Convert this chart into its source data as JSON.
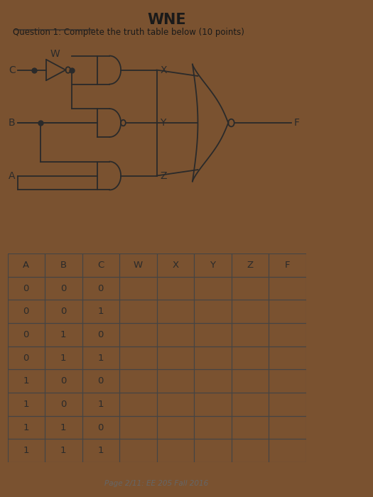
{
  "title": "WNE",
  "question_prefix": "Question 1: ",
  "question_suffix": "Complete the truth table below (10 points)",
  "page_footer": "Page 2/11: EE 205 Fall 2016",
  "paper_bg": "#f2f0ed",
  "wood_bg": "#8B5E3C",
  "table_headers": [
    "A",
    "B",
    "C",
    "W",
    "X",
    "Y",
    "Z",
    "F"
  ],
  "table_data": [
    [
      "0",
      "0",
      "0",
      "",
      "",
      "",
      "",
      ""
    ],
    [
      "0",
      "0",
      "1",
      "",
      "",
      "",
      "",
      ""
    ],
    [
      "0",
      "1",
      "0",
      "",
      "",
      "",
      "",
      ""
    ],
    [
      "0",
      "1",
      "1",
      "",
      "",
      "",
      "",
      ""
    ],
    [
      "1",
      "0",
      "0",
      "",
      "",
      "",
      "",
      ""
    ],
    [
      "1",
      "0",
      "1",
      "",
      "",
      "",
      "",
      ""
    ],
    [
      "1",
      "1",
      "0",
      "",
      "",
      "",
      "",
      ""
    ],
    [
      "1",
      "1",
      "1",
      "",
      "",
      "",
      "",
      ""
    ]
  ],
  "lw": 1.3
}
